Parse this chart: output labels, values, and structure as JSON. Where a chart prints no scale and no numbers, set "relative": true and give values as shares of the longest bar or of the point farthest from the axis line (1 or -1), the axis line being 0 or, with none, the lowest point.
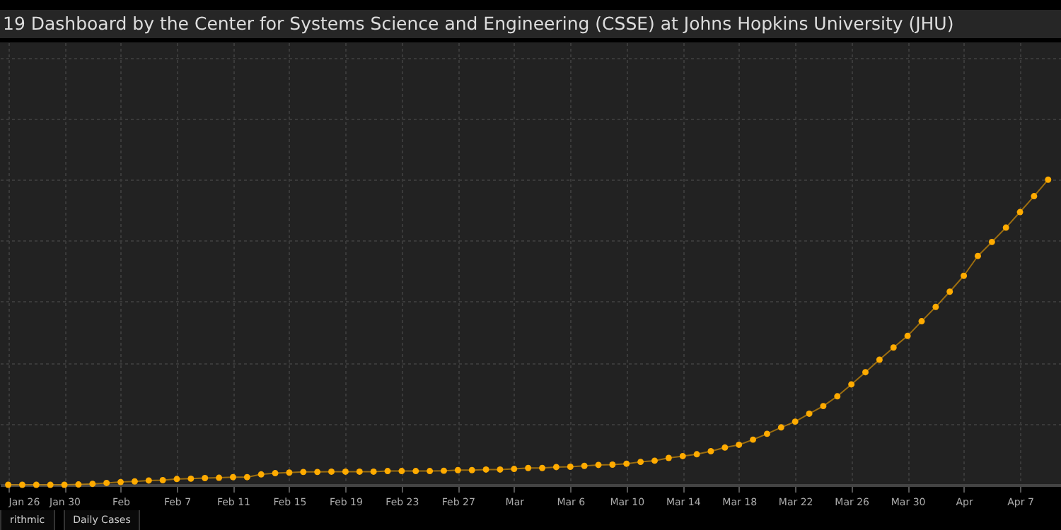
{
  "chart_data": {
    "type": "line",
    "title": "19 Dashboard by the Center for Systems Science and Engineering (CSSE) at Johns Hopkins University (JHU)",
    "annotations": [
      "rithmic",
      "Daily Cases"
    ],
    "relative": true,
    "grid": true,
    "marker": "circle",
    "xlim": [
      "--01-25T10:00",
      "--04-09T22:00"
    ],
    "xticks": [
      {
        "value": "--01-26",
        "label": "Jan 26"
      },
      {
        "value": "--01-30",
        "label": "Jan 30"
      },
      {
        "value": "--02-03",
        "label": "Feb"
      },
      {
        "value": "--02-07",
        "label": "Feb 7"
      },
      {
        "value": "--02-11",
        "label": "Feb 11"
      },
      {
        "value": "--02-15",
        "label": "Feb 15"
      },
      {
        "value": "--02-19",
        "label": "Feb 19"
      },
      {
        "value": "--02-23",
        "label": "Feb 23"
      },
      {
        "value": "--02-27",
        "label": "Feb 27"
      },
      {
        "value": "--03-02",
        "label": "Mar"
      },
      {
        "value": "--03-06",
        "label": "Mar 6"
      },
      {
        "value": "--03-10",
        "label": "Mar 10"
      },
      {
        "value": "--03-14",
        "label": "Mar 14"
      },
      {
        "value": "--03-18",
        "label": "Mar 18"
      },
      {
        "value": "--03-22",
        "label": "Mar 22"
      },
      {
        "value": "--03-26",
        "label": "Mar 26"
      },
      {
        "value": "--03-30",
        "label": "Mar 30"
      },
      {
        "value": "--04-03",
        "label": "Apr"
      },
      {
        "value": "--04-07",
        "label": "Apr 7"
      }
    ],
    "x": [
      "--01-26",
      "--01-27",
      "--01-28",
      "--01-29",
      "--01-30",
      "--01-31",
      "--02-01",
      "--02-02",
      "--02-03",
      "--02-04",
      "--02-05",
      "--02-06",
      "--02-07",
      "--02-08",
      "--02-09",
      "--02-10",
      "--02-11",
      "--02-12",
      "--02-13",
      "--02-14",
      "--02-15",
      "--02-16",
      "--02-17",
      "--02-18",
      "--02-19",
      "--02-20",
      "--02-21",
      "--02-22",
      "--02-23",
      "--02-24",
      "--02-25",
      "--02-26",
      "--02-27",
      "--02-28",
      "--02-29",
      "--03-01",
      "--03-02",
      "--03-03",
      "--03-04",
      "--03-05",
      "--03-06",
      "--03-07",
      "--03-08",
      "--03-09",
      "--03-10",
      "--03-11",
      "--03-12",
      "--03-13",
      "--03-14",
      "--03-15",
      "--03-16",
      "--03-17",
      "--03-18",
      "--03-19",
      "--03-20",
      "--03-21",
      "--03-22",
      "--03-23",
      "--03-24",
      "--03-25",
      "--03-26",
      "--03-27",
      "--03-28",
      "--03-29",
      "--03-30",
      "--03-31",
      "--04-01",
      "--04-02",
      "--04-03",
      "--04-04",
      "--04-05",
      "--04-06",
      "--04-07",
      "--04-08",
      "--04-09"
    ],
    "series": [
      {
        "color": "#ffab00",
        "values": [
          0.0,
          0.0,
          0.0,
          0.0,
          0.0,
          0.001,
          0.003,
          0.006,
          0.009,
          0.011,
          0.014,
          0.015,
          0.019,
          0.02,
          0.022,
          0.023,
          0.025,
          0.025,
          0.034,
          0.038,
          0.04,
          0.042,
          0.042,
          0.043,
          0.043,
          0.043,
          0.043,
          0.045,
          0.045,
          0.045,
          0.045,
          0.046,
          0.048,
          0.048,
          0.05,
          0.05,
          0.052,
          0.055,
          0.055,
          0.058,
          0.059,
          0.062,
          0.065,
          0.066,
          0.069,
          0.075,
          0.079,
          0.088,
          0.094,
          0.1,
          0.11,
          0.122,
          0.131,
          0.148,
          0.167,
          0.188,
          0.207,
          0.233,
          0.258,
          0.29,
          0.329,
          0.369,
          0.41,
          0.45,
          0.488,
          0.536,
          0.583,
          0.633,
          0.685,
          0.75,
          0.796,
          0.843,
          0.894,
          0.946,
          1
        ]
      }
    ]
  }
}
